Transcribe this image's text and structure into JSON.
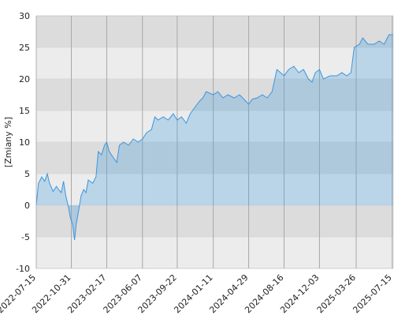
{
  "chart_data": {
    "type": "area",
    "y_label": "[Zmiany %]",
    "x": [
      "2022-07-15",
      "2022-07-22",
      "2022-08-01",
      "2022-08-10",
      "2022-08-18",
      "2022-08-25",
      "2022-09-05",
      "2022-09-15",
      "2022-09-22",
      "2022-09-30",
      "2022-10-07",
      "2022-10-14",
      "2022-10-21",
      "2022-10-28",
      "2022-11-04",
      "2022-11-10",
      "2022-11-15",
      "2022-11-22",
      "2022-11-30",
      "2022-12-08",
      "2022-12-15",
      "2022-12-22",
      "2023-01-05",
      "2023-01-15",
      "2023-01-22",
      "2023-02-01",
      "2023-02-10",
      "2023-02-17",
      "2023-02-25",
      "2023-03-10",
      "2023-03-20",
      "2023-03-28",
      "2023-04-10",
      "2023-04-25",
      "2023-05-10",
      "2023-05-25",
      "2023-06-07",
      "2023-06-20",
      "2023-07-05",
      "2023-07-15",
      "2023-07-25",
      "2023-08-10",
      "2023-08-25",
      "2023-09-10",
      "2023-09-22",
      "2023-10-05",
      "2023-10-20",
      "2023-11-01",
      "2023-11-15",
      "2023-11-30",
      "2023-12-10",
      "2023-12-20",
      "2024-01-11",
      "2024-01-25",
      "2024-02-10",
      "2024-02-25",
      "2024-03-15",
      "2024-04-01",
      "2024-04-20",
      "2024-04-29",
      "2024-05-10",
      "2024-05-25",
      "2024-06-10",
      "2024-06-25",
      "2024-07-10",
      "2024-07-25",
      "2024-08-05",
      "2024-08-16",
      "2024-08-30",
      "2024-09-15",
      "2024-09-30",
      "2024-10-15",
      "2024-10-30",
      "2024-11-10",
      "2024-11-20",
      "2024-12-03",
      "2024-12-15",
      "2025-01-05",
      "2025-01-25",
      "2025-02-10",
      "2025-02-25",
      "2025-03-10",
      "2025-03-20",
      "2025-04-05",
      "2025-04-15",
      "2025-05-01",
      "2025-05-20",
      "2025-06-05",
      "2025-06-20",
      "2025-07-05",
      "2025-07-18"
    ],
    "series": [
      {
        "color": "#3a96dd",
        "values": [
          0,
          3.5,
          4.5,
          3.8,
          5.0,
          3.5,
          2.2,
          3.0,
          2.5,
          2.0,
          3.8,
          1.5,
          0,
          -2.0,
          -3.0,
          -5.5,
          -3.0,
          -1.0,
          1.5,
          2.5,
          2.0,
          4.0,
          3.5,
          4.5,
          8.5,
          8.0,
          9.5,
          10.0,
          8.5,
          7.5,
          6.8,
          9.5,
          10.0,
          9.5,
          10.5,
          10.0,
          10.5,
          11.5,
          12.0,
          14.0,
          13.5,
          14.0,
          13.5,
          14.5,
          13.5,
          14.0,
          13.0,
          14.5,
          15.5,
          16.5,
          17.0,
          18.0,
          17.5,
          18.0,
          17.0,
          17.5,
          17.0,
          17.5,
          16.5,
          16.0,
          16.8,
          17.0,
          17.5,
          17.0,
          18.0,
          21.5,
          21.0,
          20.5,
          21.5,
          22.0,
          21.0,
          21.5,
          20.0,
          19.5,
          21.0,
          21.5,
          20.0,
          20.5,
          20.5,
          21.0,
          20.5,
          21.0,
          25.0,
          25.5,
          26.5,
          25.5,
          25.5,
          26.0,
          25.5,
          27.0,
          27.0
        ]
      }
    ],
    "xlim": [
      "2022-07-15",
      "2025-07-18"
    ],
    "xticks": [
      "2022-07-15",
      "2022-10-31",
      "2023-02-17",
      "2023-06-07",
      "2023-09-22",
      "2024-01-11",
      "2024-04-29",
      "2024-08-16",
      "2024-12-03",
      "2025-03-26",
      "2025-07-15"
    ],
    "ylim": [
      -10,
      30
    ],
    "yticks": [
      -10,
      -5,
      0,
      5,
      10,
      15,
      20,
      25,
      30
    ],
    "grid": true
  }
}
